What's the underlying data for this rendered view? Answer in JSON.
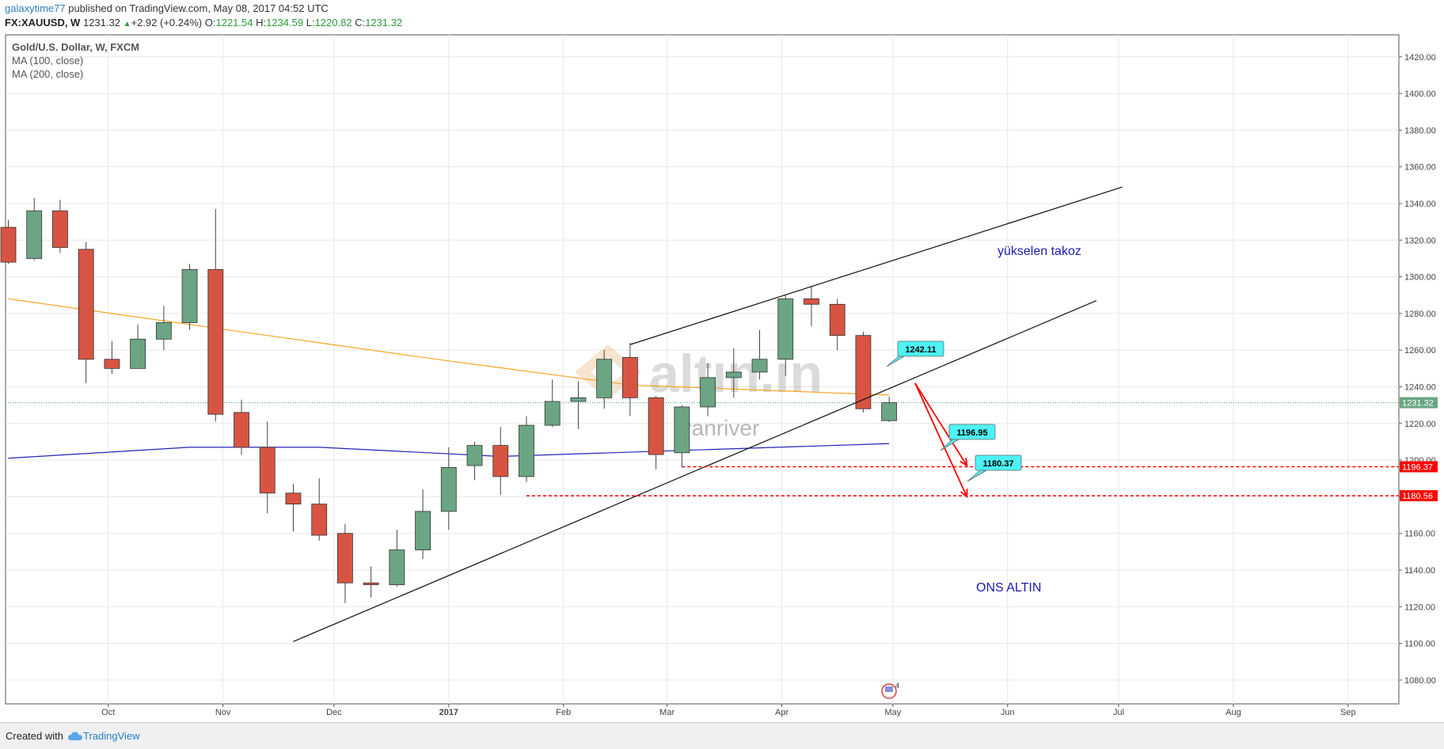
{
  "header": {
    "author": "galaxytime77",
    "published": " published on TradingView.com, May 08, 2017 04:52 UTC",
    "symbol": "FX:XAUUSD, W",
    "last": "1231.32",
    "change": "+2.92 (+0.24%)",
    "o_label": "O:",
    "o": "1221.54",
    "h_label": "H:",
    "h": "1234.59",
    "l_label": "L:",
    "l": "1220.82",
    "c_label": "C:",
    "c": "1231.32"
  },
  "legend": {
    "title": "Gold/U.S. Dollar, W, FXCM",
    "ma1": "MA (100, close)",
    "ma2": "MA (200, close)"
  },
  "annotations": {
    "wedge_label": "yükselen takoz",
    "ons_label": "ONS ALTIN",
    "watermark_logo": "altın.in",
    "watermark_text": "Panriver",
    "callout1": "1242.11",
    "callout2": "1196.95",
    "callout3": "1180.37",
    "event_count": "4"
  },
  "price_tags": {
    "last": "1231.32",
    "level1": "1196.37",
    "level2": "1180.56"
  },
  "footer": {
    "created_with": "Created with",
    "brand": "TradingView"
  },
  "colors": {
    "bull": "#6ba583",
    "bear": "#d75442",
    "ma100": "#f5a623",
    "ma200": "#2424b8",
    "support": "#ff0000",
    "callout": "#4df3f5",
    "label_blue": "#1a1ab4"
  },
  "chart_data": {
    "type": "candlestick",
    "title": "Gold/U.S. Dollar, W, FXCM",
    "x_tick_labels": [
      "Oct",
      "Nov",
      "Dec",
      "2017",
      "Feb",
      "Mar",
      "Apr",
      "May",
      "Jun",
      "Jul",
      "Aug",
      "Sep"
    ],
    "y_ticks": [
      1080,
      1100,
      1120,
      1140,
      1160,
      1180,
      1200,
      1220,
      1240,
      1260,
      1280,
      1300,
      1320,
      1340,
      1360,
      1380,
      1400,
      1420
    ],
    "ylim": [
      1067,
      1432
    ],
    "grid": true,
    "candles": [
      {
        "date": "2016-09-04",
        "o": 1327,
        "h": 1331,
        "l": 1307,
        "c": 1308
      },
      {
        "date": "2016-09-11",
        "o": 1310,
        "h": 1343,
        "l": 1309,
        "c": 1336
      },
      {
        "date": "2016-09-18",
        "o": 1336,
        "h": 1342,
        "l": 1313,
        "c": 1316
      },
      {
        "date": "2016-09-25",
        "o": 1315,
        "h": 1319,
        "l": 1242,
        "c": 1255
      },
      {
        "date": "2016-10-02",
        "o": 1255,
        "h": 1265,
        "l": 1247,
        "c": 1250
      },
      {
        "date": "2016-10-09",
        "o": 1250,
        "h": 1274,
        "l": 1250,
        "c": 1266
      },
      {
        "date": "2016-10-16",
        "o": 1266,
        "h": 1284,
        "l": 1260,
        "c": 1275
      },
      {
        "date": "2016-10-23",
        "o": 1275,
        "h": 1307,
        "l": 1271,
        "c": 1304
      },
      {
        "date": "2016-10-30",
        "o": 1304,
        "h": 1337,
        "l": 1221,
        "c": 1225
      },
      {
        "date": "2016-11-06",
        "o": 1226,
        "h": 1233,
        "l": 1203,
        "c": 1207
      },
      {
        "date": "2016-11-13",
        "o": 1207,
        "h": 1221,
        "l": 1171,
        "c": 1182
      },
      {
        "date": "2016-11-20",
        "o": 1182,
        "h": 1187,
        "l": 1161,
        "c": 1176
      },
      {
        "date": "2016-11-27",
        "o": 1176,
        "h": 1190,
        "l": 1156,
        "c": 1159
      },
      {
        "date": "2016-12-04",
        "o": 1160,
        "h": 1165,
        "l": 1122,
        "c": 1133
      },
      {
        "date": "2016-12-11",
        "o": 1133,
        "h": 1142,
        "l": 1125,
        "c": 1132
      },
      {
        "date": "2016-12-18",
        "o": 1132,
        "h": 1162,
        "l": 1131,
        "c": 1151
      },
      {
        "date": "2016-12-25",
        "o": 1151,
        "h": 1184,
        "l": 1146,
        "c": 1172
      },
      {
        "date": "2017-01-01",
        "o": 1172,
        "h": 1207,
        "l": 1162,
        "c": 1196
      },
      {
        "date": "2017-01-08",
        "o": 1197,
        "h": 1210,
        "l": 1189,
        "c": 1208
      },
      {
        "date": "2017-01-15",
        "o": 1208,
        "h": 1218,
        "l": 1181,
        "c": 1191
      },
      {
        "date": "2017-01-22",
        "o": 1191,
        "h": 1224,
        "l": 1188,
        "c": 1219
      },
      {
        "date": "2017-01-29",
        "o": 1219,
        "h": 1244,
        "l": 1218,
        "c": 1232
      },
      {
        "date": "2017-02-05",
        "o": 1232,
        "h": 1243,
        "l": 1217,
        "c": 1234
      },
      {
        "date": "2017-02-12",
        "o": 1234,
        "h": 1260,
        "l": 1228,
        "c": 1255
      },
      {
        "date": "2017-02-19",
        "o": 1256,
        "h": 1264,
        "l": 1224,
        "c": 1234
      },
      {
        "date": "2017-02-26",
        "o": 1234,
        "h": 1235,
        "l": 1195,
        "c": 1203
      },
      {
        "date": "2017-03-05",
        "o": 1204,
        "h": 1230,
        "l": 1196,
        "c": 1229
      },
      {
        "date": "2017-03-12",
        "o": 1229,
        "h": 1253,
        "l": 1224,
        "c": 1245
      },
      {
        "date": "2017-03-19",
        "o": 1245,
        "h": 1261,
        "l": 1234,
        "c": 1248
      },
      {
        "date": "2017-03-26",
        "o": 1248,
        "h": 1271,
        "l": 1244,
        "c": 1255
      },
      {
        "date": "2017-04-02",
        "o": 1255,
        "h": 1290,
        "l": 1246,
        "c": 1288
      },
      {
        "date": "2017-04-09",
        "o": 1288,
        "h": 1295,
        "l": 1273,
        "c": 1285
      },
      {
        "date": "2017-04-16",
        "o": 1285,
        "h": 1288,
        "l": 1260,
        "c": 1268
      },
      {
        "date": "2017-04-23",
        "o": 1268,
        "h": 1270,
        "l": 1226,
        "c": 1228
      },
      {
        "date": "2017-04-30",
        "o": 1221.54,
        "h": 1234.59,
        "l": 1220.82,
        "c": 1231.32
      }
    ],
    "ma100": [
      {
        "date": "2016-09-04",
        "v": 1288
      },
      {
        "date": "2016-10-30",
        "v": 1272
      },
      {
        "date": "2016-12-25",
        "v": 1256
      },
      {
        "date": "2017-02-19",
        "v": 1241
      },
      {
        "date": "2017-04-23",
        "v": 1236
      },
      {
        "date": "2017-04-30",
        "v": 1235.5
      }
    ],
    "ma200": [
      {
        "date": "2016-09-04",
        "v": 1201
      },
      {
        "date": "2016-10-23",
        "v": 1207
      },
      {
        "date": "2016-11-27",
        "v": 1207
      },
      {
        "date": "2017-01-15",
        "v": 1202
      },
      {
        "date": "2017-04-30",
        "v": 1209
      }
    ],
    "trendlines": [
      {
        "from": {
          "date": "2016-11-20",
          "v": 1101
        },
        "to": {
          "date": "2017-06-25",
          "v": 1287
        }
      },
      {
        "from": {
          "date": "2017-02-19",
          "v": 1263
        },
        "to": {
          "date": "2017-07-02",
          "v": 1349
        }
      }
    ],
    "arrows": [
      {
        "from": {
          "date": "2017-05-07",
          "v": 1242
        },
        "to": {
          "date": "2017-05-21",
          "v": 1197
        }
      },
      {
        "from": {
          "date": "2017-05-07",
          "v": 1242
        },
        "to": {
          "date": "2017-05-21",
          "v": 1180
        }
      }
    ],
    "support_levels": [
      {
        "value": 1196.37,
        "from": "2017-03-05",
        "color": "#ff0000"
      },
      {
        "value": 1180.56,
        "from": "2017-01-22",
        "color": "#ff0000"
      }
    ],
    "last_price": 1231.32
  }
}
